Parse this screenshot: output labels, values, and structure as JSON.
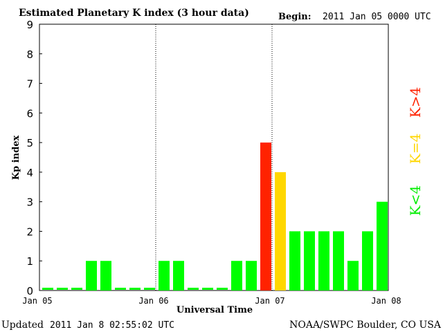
{
  "header": {
    "title": "Estimated Planetary K index (3 hour data)",
    "begin_label": "Begin:",
    "begin_value": "2011 Jan 05 0000 UTC"
  },
  "footer": {
    "updated_label": "Updated",
    "updated_value": "2011 Jan  8 02:55:02 UTC",
    "source": "NOAA/SWPC Boulder, CO USA"
  },
  "legend": {
    "low": "K<4",
    "mid": "K=4",
    "high": "K>4"
  },
  "colors": {
    "low": "#00ff00",
    "mid": "#ffd700",
    "high": "#ff2200",
    "axis": "#000000",
    "background": "#ffffff"
  },
  "chart_data": {
    "type": "bar",
    "title": "Estimated Planetary K index (3 hour data)",
    "xlabel": "Universal Time",
    "ylabel": "Kp index",
    "ylim": [
      0,
      9
    ],
    "yticks": [
      0,
      1,
      2,
      3,
      4,
      5,
      6,
      7,
      8,
      9
    ],
    "xtick_labels": [
      "Jan 05",
      "Jan 06",
      "Jan 07",
      "Jan 08"
    ],
    "day_separators": [
      "Jan 06",
      "Jan 07"
    ],
    "interval": "3 hour",
    "values": [
      0,
      0,
      0,
      1,
      1,
      0,
      0,
      0,
      1,
      1,
      0,
      0,
      0,
      1,
      1,
      5,
      4,
      2,
      2,
      2,
      2,
      1,
      2,
      3
    ],
    "color_rule": "K<4 green, K=4 yellow, K>4 red",
    "grid": false
  }
}
